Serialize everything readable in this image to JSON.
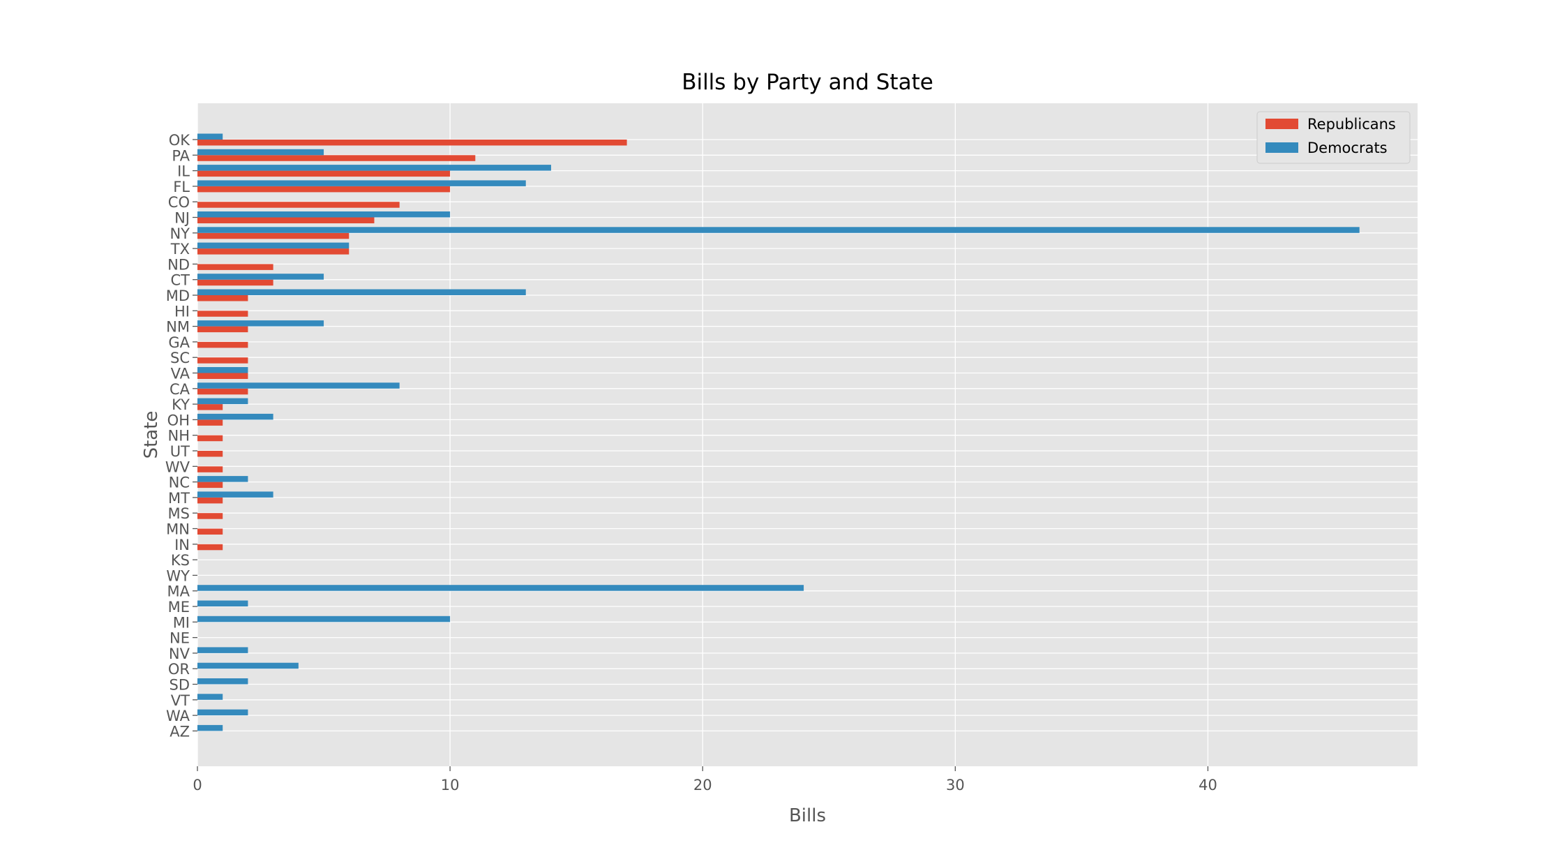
{
  "chart_data": {
    "type": "bar",
    "orientation": "horizontal",
    "title": "Bills by Party and State",
    "xlabel": "Bills",
    "ylabel": "State",
    "xlim": [
      0,
      48.3
    ],
    "xticks": [
      0,
      10,
      20,
      30,
      40
    ],
    "grid": true,
    "legend_position": "top-right",
    "categories": [
      "OK",
      "PA",
      "IL",
      "FL",
      "CO",
      "NJ",
      "NY",
      "TX",
      "ND",
      "CT",
      "MD",
      "HI",
      "NM",
      "GA",
      "SC",
      "VA",
      "CA",
      "KY",
      "OH",
      "NH",
      "UT",
      "WV",
      "NC",
      "MT",
      "MS",
      "MN",
      "IN",
      "KS",
      "WY",
      "MA",
      "ME",
      "MI",
      "NE",
      "NV",
      "OR",
      "SD",
      "VT",
      "WA",
      "AZ"
    ],
    "series": [
      {
        "name": "Republicans",
        "color": "#E24A33",
        "values": [
          17,
          11,
          10,
          10,
          8,
          7,
          6,
          6,
          3,
          3,
          2,
          2,
          2,
          2,
          2,
          2,
          2,
          1,
          1,
          1,
          1,
          1,
          1,
          1,
          1,
          1,
          1,
          0,
          0,
          0,
          0,
          0,
          0,
          0,
          0,
          0,
          0,
          0,
          0
        ]
      },
      {
        "name": "Democrats",
        "color": "#348ABD",
        "values": [
          1,
          5,
          14,
          13,
          0,
          10,
          46,
          6,
          0,
          5,
          13,
          0,
          5,
          0,
          0,
          2,
          8,
          2,
          3,
          0,
          0,
          0,
          2,
          3,
          0,
          0,
          0,
          0,
          0,
          24,
          2,
          10,
          0,
          2,
          4,
          2,
          1,
          2,
          1
        ]
      }
    ],
    "colors": {
      "plot_background": "#E5E5E5",
      "grid": "#FFFFFF",
      "text": "#555555"
    }
  }
}
